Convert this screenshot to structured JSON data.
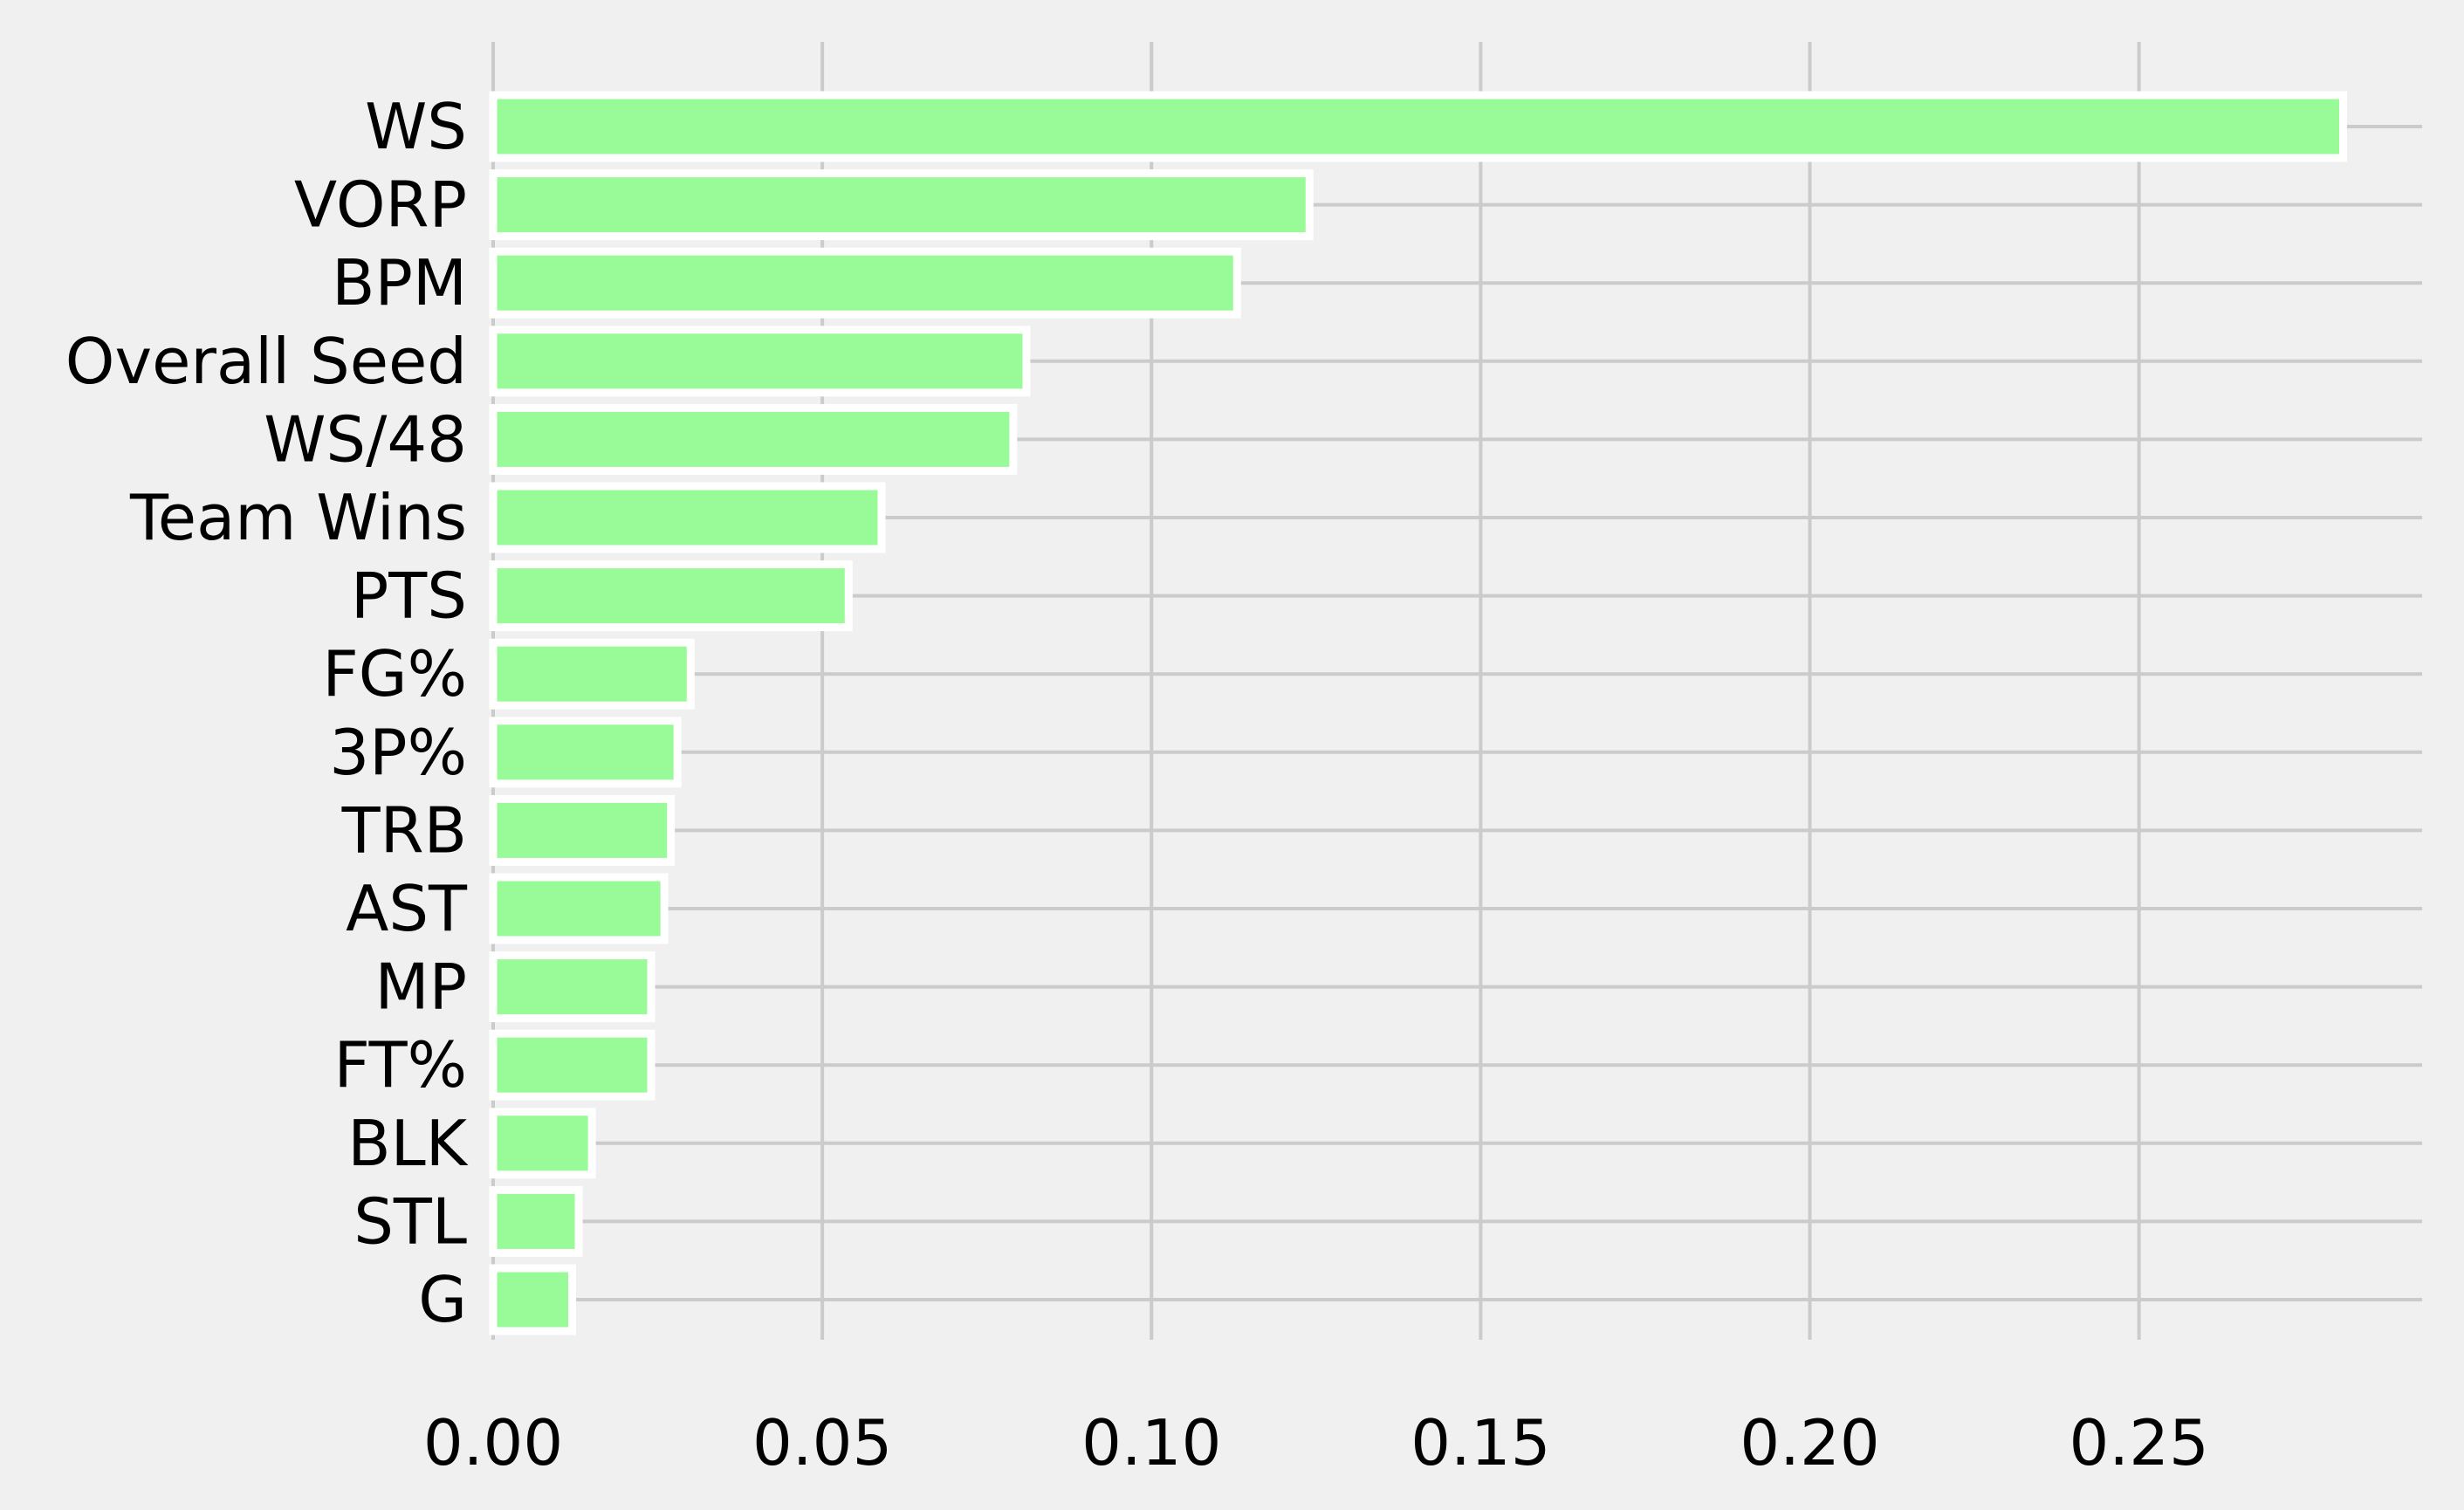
{
  "chart_data": {
    "type": "bar",
    "orientation": "horizontal",
    "categories": [
      "WS",
      "VORP",
      "BPM",
      "Overall Seed",
      "WS/48",
      "Team Wins",
      "PTS",
      "FG%",
      "3P%",
      "TRB",
      "AST",
      "MP",
      "FT%",
      "BLK",
      "STL",
      "G"
    ],
    "values": [
      0.281,
      0.124,
      0.113,
      0.081,
      0.079,
      0.059,
      0.054,
      0.03,
      0.028,
      0.027,
      0.026,
      0.024,
      0.024,
      0.015,
      0.013,
      0.012
    ],
    "title": "",
    "xlabel": "",
    "ylabel": "",
    "xlim": [
      0.0,
      0.293
    ],
    "xticks": [
      "0.00",
      "0.05",
      "0.10",
      "0.15",
      "0.20",
      "0.25"
    ],
    "grid": true,
    "legend": "none",
    "colors": {
      "background": "#f0f0f0",
      "bar_fill": "#98fb98",
      "bar_edge": "#ffffff",
      "grid": "#cbcbcb",
      "text": "#000000"
    }
  }
}
